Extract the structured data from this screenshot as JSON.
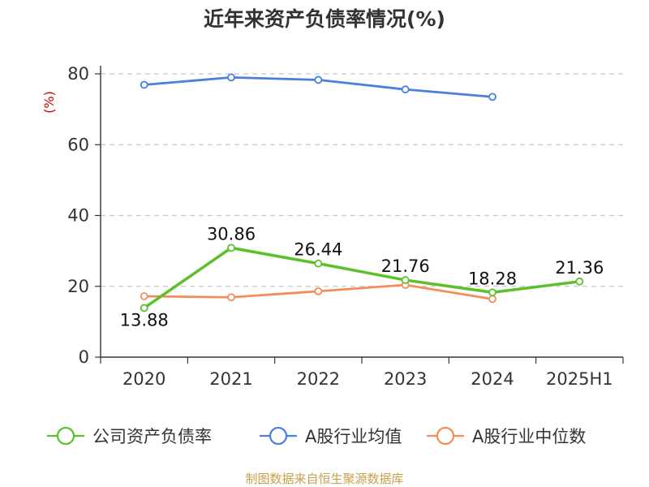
{
  "chart_data": {
    "type": "line",
    "title": "近年来资产负债率情况(%)",
    "ylabel": "(%)",
    "categories": [
      "2020",
      "2021",
      "2022",
      "2023",
      "2024",
      "2025H1"
    ],
    "ylim": [
      0,
      80
    ],
    "yticks": [
      0,
      20,
      40,
      60,
      80
    ],
    "grid": true,
    "legend_position": "bottom",
    "series": [
      {
        "name": "公司资产负债率",
        "color": "#5cc02a",
        "values": [
          13.88,
          30.86,
          26.44,
          21.76,
          18.28,
          21.36
        ],
        "labels": [
          "13.88",
          "30.86",
          "26.44",
          "21.76",
          "18.28",
          "21.36"
        ]
      },
      {
        "name": "A股行业均值",
        "color": "#4a7fdc",
        "values": [
          76.9,
          79.0,
          78.3,
          75.6,
          73.5,
          null
        ]
      },
      {
        "name": "A股行业中位数",
        "color": "#f58c57",
        "values": [
          17.2,
          16.9,
          18.6,
          20.4,
          16.4,
          null
        ]
      }
    ]
  },
  "source": "制图数据来自恒生聚源数据库"
}
